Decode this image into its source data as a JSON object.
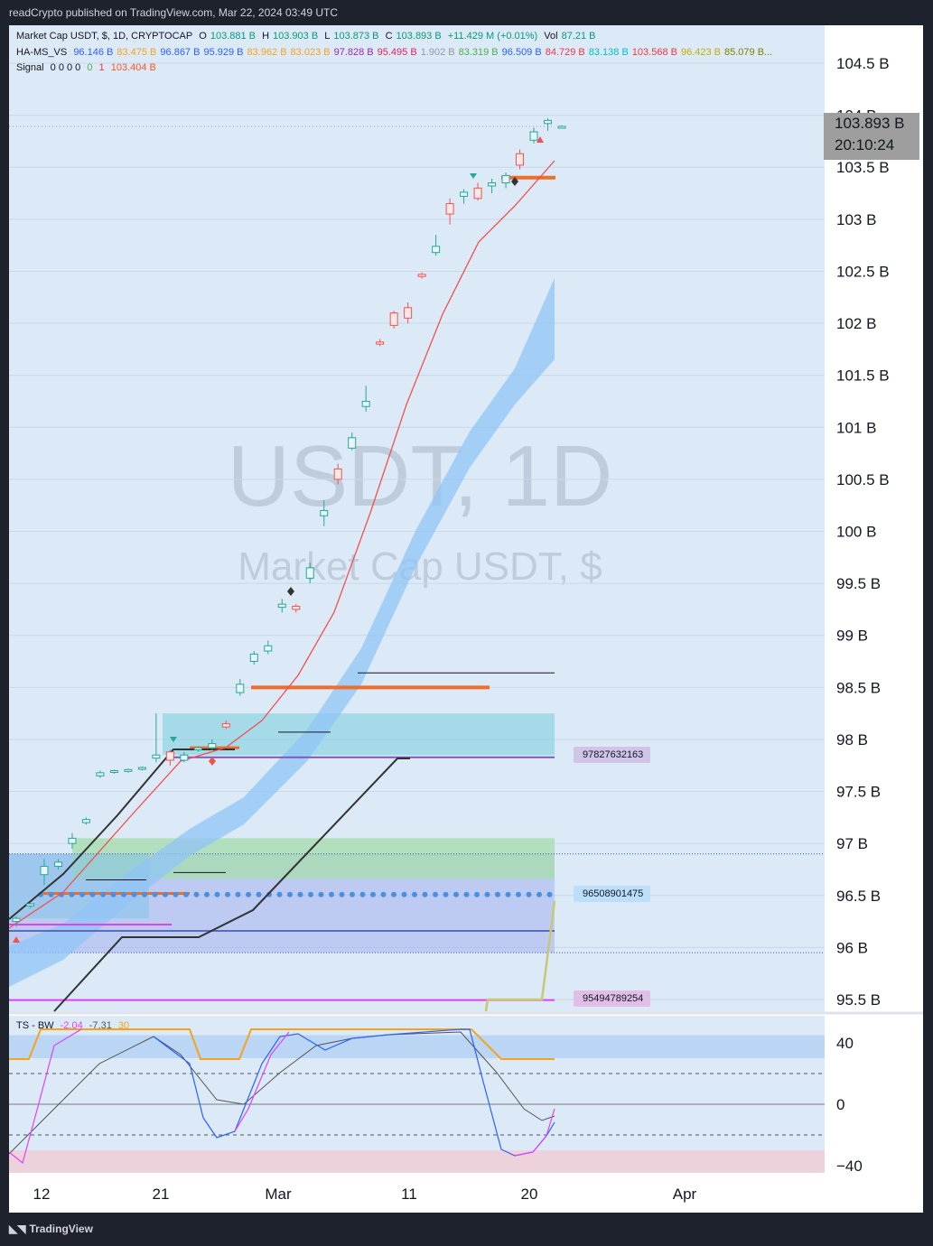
{
  "header": {
    "publisher": "readCrypto published on TradingView.com, Mar 22, 2024 03:49 UTC"
  },
  "legend": {
    "main": {
      "name": "Market Cap USDT, $, 1D, CRYPTOCAP",
      "o_label": "O",
      "o": "103.881 B",
      "h_label": "H",
      "h": "103.903 B",
      "l_label": "L",
      "l": "103.873 B",
      "c_label": "C",
      "c": "103.893 B",
      "change": "+11.429 M (+0.01%)",
      "vol_label": "Vol",
      "vol": "87.21 B"
    },
    "ha": {
      "name": "HA-MS_VS",
      "values": [
        {
          "v": "96.146 B",
          "color": "#2962ff"
        },
        {
          "v": "83.475 B",
          "color": "#f7a21b"
        },
        {
          "v": "96.867 B",
          "color": "#2962ff"
        },
        {
          "v": "95.929 B",
          "color": "#2962ff"
        },
        {
          "v": "83.962 B",
          "color": "#f7a21b"
        },
        {
          "v": "83.023 B",
          "color": "#f7a21b"
        },
        {
          "v": "97.828 B",
          "color": "#9c27b0"
        },
        {
          "v": "95.495 B",
          "color": "#e91e63"
        },
        {
          "v": "1.902 B",
          "color": "#9598a1"
        },
        {
          "v": "83.319 B",
          "color": "#4caf50"
        },
        {
          "v": "96.509 B",
          "color": "#2962ff"
        },
        {
          "v": "84.729 B",
          "color": "#f23645"
        },
        {
          "v": "83.138 B",
          "color": "#00bcd4"
        },
        {
          "v": "103.568 B",
          "color": "#f23645"
        },
        {
          "v": "96.423 B",
          "color": "#c0b000"
        },
        {
          "v": "85.079 B...",
          "color": "#808000"
        }
      ]
    },
    "signal": {
      "name": "Signal",
      "zeros": "0 0 0 0",
      "green": "0",
      "one": "1",
      "value": "103.404 B"
    },
    "osc": {
      "name": "TS - BW",
      "v1": "-2.04",
      "v2": "-7.31",
      "v3": "30"
    }
  },
  "watermark": {
    "symbol": "USDT, 1D",
    "name": "Market Cap USDT, $"
  },
  "price_box": {
    "price": "103.893 B",
    "countdown": "20:10:24"
  },
  "tags": {
    "purple": "97827632163",
    "blue": "96508901475",
    "pink": "95494789254"
  },
  "y_axis_labels": [
    "104.5 B",
    "104 B",
    "103.5 B",
    "103 B",
    "102.5 B",
    "102 B",
    "101.5 B",
    "101 B",
    "100.5 B",
    "100 B",
    "99.5 B",
    "99 B",
    "98.5 B",
    "98 B",
    "97.5 B",
    "97 B",
    "96.5 B",
    "96 B",
    "95.5 B"
  ],
  "osc_axis_labels": [
    "40",
    "0",
    "−40"
  ],
  "x_axis_labels": [
    "12",
    "21",
    "Mar",
    "11",
    "20",
    "Apr"
  ],
  "footer": {
    "brand": "TradingView"
  },
  "chart_data": {
    "type": "candlestick",
    "title": "Market Cap USDT, $, 1D, CRYPTOCAP",
    "x_ticks": [
      "12",
      "21",
      "Mar",
      "11",
      "20",
      "Apr"
    ],
    "ylim": [
      95.3,
      104.8
    ],
    "y_unit": "B",
    "candles": [
      {
        "o": 96.25,
        "c": 96.28,
        "h": 96.3,
        "l": 96.2
      },
      {
        "o": 96.4,
        "c": 96.42,
        "h": 96.43,
        "l": 96.38
      },
      {
        "o": 96.7,
        "c": 96.78,
        "h": 96.85,
        "l": 96.6
      },
      {
        "o": 96.78,
        "c": 96.82,
        "h": 96.85,
        "l": 96.75
      },
      {
        "o": 97.0,
        "c": 97.05,
        "h": 97.1,
        "l": 96.95
      },
      {
        "o": 97.2,
        "c": 97.23,
        "h": 97.25,
        "l": 97.18
      },
      {
        "o": 97.65,
        "c": 97.68,
        "h": 97.7,
        "l": 97.63
      },
      {
        "o": 97.69,
        "c": 97.7,
        "h": 97.71,
        "l": 97.67
      },
      {
        "o": 97.7,
        "c": 97.71,
        "h": 97.72,
        "l": 97.68
      },
      {
        "o": 97.72,
        "c": 97.73,
        "h": 97.74,
        "l": 97.7
      },
      {
        "o": 97.82,
        "c": 97.85,
        "h": 98.25,
        "l": 97.78
      },
      {
        "o": 97.88,
        "c": 97.8,
        "h": 97.9,
        "l": 97.75
      },
      {
        "o": 97.8,
        "c": 97.85,
        "h": 97.88,
        "l": 97.78
      },
      {
        "o": 97.9,
        "c": 97.92,
        "h": 97.93,
        "l": 97.88
      },
      {
        "o": 97.92,
        "c": 97.96,
        "h": 98.0,
        "l": 97.9
      },
      {
        "o": 98.15,
        "c": 98.12,
        "h": 98.18,
        "l": 98.1
      },
      {
        "o": 98.45,
        "c": 98.53,
        "h": 98.58,
        "l": 98.42
      },
      {
        "o": 98.75,
        "c": 98.82,
        "h": 98.85,
        "l": 98.72
      },
      {
        "o": 98.85,
        "c": 98.9,
        "h": 98.95,
        "l": 98.82
      },
      {
        "o": 99.27,
        "c": 99.3,
        "h": 99.35,
        "l": 99.22
      },
      {
        "o": 99.28,
        "c": 99.25,
        "h": 99.3,
        "l": 99.22
      },
      {
        "o": 99.55,
        "c": 99.65,
        "h": 99.7,
        "l": 99.5
      },
      {
        "o": 100.15,
        "c": 100.2,
        "h": 100.3,
        "l": 100.05
      },
      {
        "o": 100.6,
        "c": 100.5,
        "h": 100.65,
        "l": 100.45
      },
      {
        "o": 100.8,
        "c": 100.9,
        "h": 100.95,
        "l": 100.78
      },
      {
        "o": 101.2,
        "c": 101.25,
        "h": 101.4,
        "l": 101.15
      },
      {
        "o": 101.82,
        "c": 101.8,
        "h": 101.85,
        "l": 101.78
      },
      {
        "o": 102.1,
        "c": 101.98,
        "h": 102.12,
        "l": 101.95
      },
      {
        "o": 102.15,
        "c": 102.05,
        "h": 102.2,
        "l": 102.0
      },
      {
        "o": 102.47,
        "c": 102.45,
        "h": 102.49,
        "l": 102.43
      },
      {
        "o": 102.68,
        "c": 102.74,
        "h": 102.85,
        "l": 102.65
      },
      {
        "o": 103.15,
        "c": 103.05,
        "h": 103.2,
        "l": 102.95
      },
      {
        "o": 103.22,
        "c": 103.26,
        "h": 103.29,
        "l": 103.15
      },
      {
        "o": 103.3,
        "c": 103.2,
        "h": 103.35,
        "l": 103.18
      },
      {
        "o": 103.32,
        "c": 103.35,
        "h": 103.39,
        "l": 103.25
      },
      {
        "o": 103.35,
        "c": 103.42,
        "h": 103.45,
        "l": 103.3
      },
      {
        "o": 103.63,
        "c": 103.52,
        "h": 103.67,
        "l": 103.48
      },
      {
        "o": 103.76,
        "c": 103.84,
        "h": 103.88,
        "l": 103.73
      },
      {
        "o": 103.92,
        "c": 103.95,
        "h": 103.97,
        "l": 103.85
      },
      {
        "o": 103.881,
        "c": 103.893,
        "h": 103.903,
        "l": 103.873
      }
    ],
    "levels": {
      "purple": 97.828,
      "blue": 96.509,
      "pink": 95.495,
      "last": 103.893
    },
    "osc_ylim": [
      -45,
      45
    ]
  }
}
